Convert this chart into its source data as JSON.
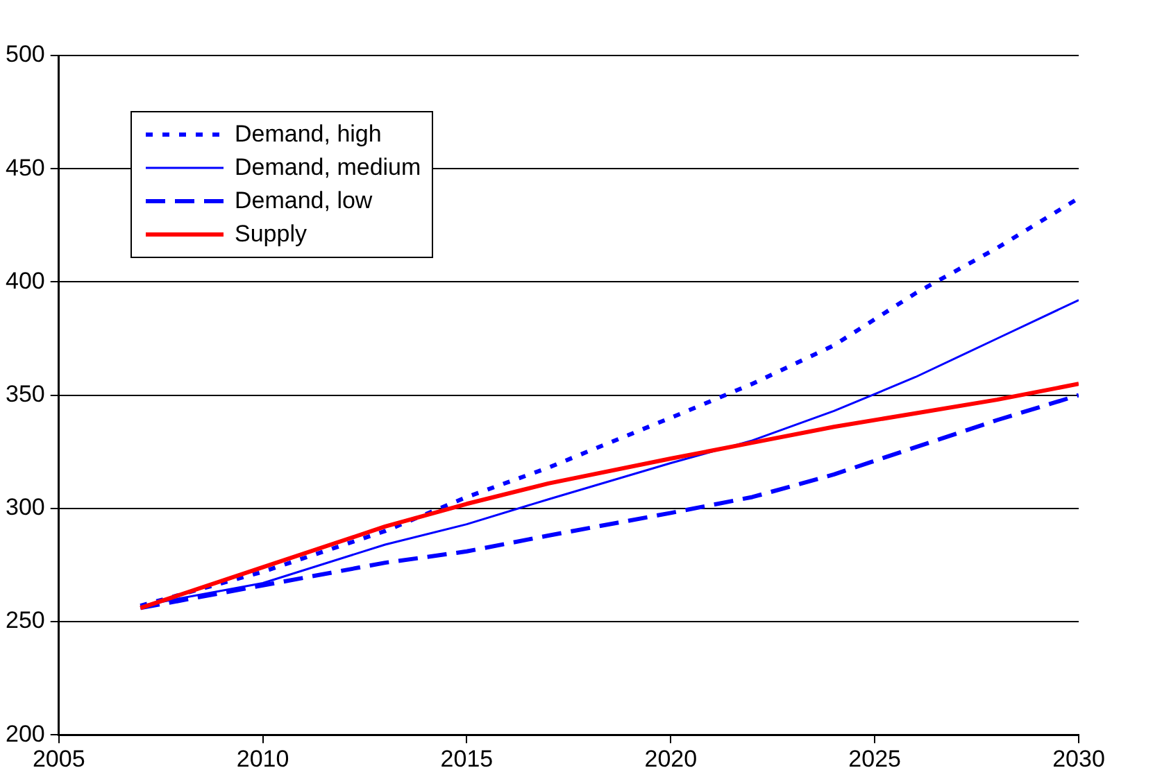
{
  "chart_data": {
    "type": "line",
    "x": [
      2007,
      2010,
      2013,
      2015,
      2017,
      2020,
      2022,
      2024,
      2026,
      2028,
      2030
    ],
    "series": [
      {
        "name": "Demand, high",
        "color": "#0000ff",
        "line_style": "dotted",
        "values": [
          257,
          272,
          290,
          305,
          318,
          340,
          355,
          372,
          395,
          415,
          437
        ]
      },
      {
        "name": "Demand, medium",
        "color": "#0000ff",
        "line_style": "solid",
        "values": [
          257,
          267,
          284,
          293,
          304,
          320,
          330,
          343,
          358,
          375,
          392
        ]
      },
      {
        "name": "Demand, low",
        "color": "#0000ff",
        "line_style": "dashed",
        "values": [
          256,
          266,
          276,
          281,
          288,
          298,
          305,
          315,
          327,
          339,
          350
        ]
      },
      {
        "name": "Supply",
        "color": "#ff0000",
        "line_style": "solid",
        "values": [
          256,
          274,
          292,
          302,
          311,
          322,
          329,
          336,
          342,
          348,
          355
        ]
      }
    ],
    "xlim": [
      2005,
      2030
    ],
    "xticks": [
      2005,
      2010,
      2015,
      2020,
      2025,
      2030
    ],
    "ylim": [
      200,
      500
    ],
    "yticks": [
      200,
      250,
      300,
      350,
      400,
      450,
      500
    ],
    "grid": "y",
    "legend": "top left",
    "marker": "none"
  }
}
